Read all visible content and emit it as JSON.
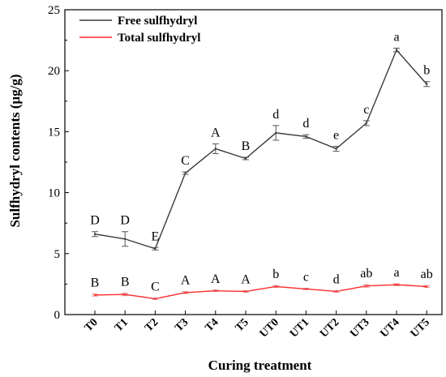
{
  "chart_data": {
    "type": "line",
    "categories": [
      "T0",
      "T1",
      "T2",
      "T3",
      "T4",
      "T5",
      "UT0",
      "UT1",
      "UT2",
      "UT3",
      "UT4",
      "UT5"
    ],
    "xlabel": "Curing treatment",
    "ylabel": "Sulfhydryl contents (μg/g)",
    "ylim": [
      0,
      25
    ],
    "yticks": [
      0,
      5,
      10,
      15,
      20,
      25
    ],
    "grid": false,
    "legend_position": "top-left",
    "series": [
      {
        "name": "Free sulfhydryl",
        "color": "#3a3a3a",
        "values": [
          6.6,
          6.2,
          5.4,
          11.6,
          13.6,
          12.8,
          14.9,
          14.6,
          13.6,
          15.7,
          21.7,
          18.9
        ],
        "errors": [
          0.2,
          0.6,
          0.1,
          0.1,
          0.4,
          0.1,
          0.6,
          0.15,
          0.2,
          0.2,
          0.15,
          0.2
        ],
        "annotations": [
          "D",
          "D",
          "E",
          "C",
          "A",
          "B",
          "d",
          "d",
          "e",
          "c",
          "a",
          "b"
        ]
      },
      {
        "name": "Total sulfhydryl",
        "color": "#ff2a2a",
        "values": [
          1.6,
          1.65,
          1.3,
          1.8,
          1.95,
          1.9,
          2.3,
          2.1,
          1.9,
          2.35,
          2.45,
          2.3
        ],
        "errors": [
          0.08,
          0.1,
          0.06,
          0.08,
          0.06,
          0.06,
          0.08,
          0.06,
          0.06,
          0.1,
          0.08,
          0.08
        ],
        "annotations": [
          "B",
          "B",
          "C",
          "A",
          "A",
          "A",
          "b",
          "c",
          "d",
          "ab",
          "a",
          "ab"
        ]
      }
    ]
  }
}
